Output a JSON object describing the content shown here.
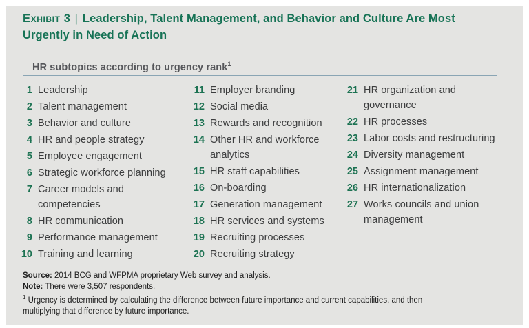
{
  "header": {
    "exhibit_label": "Exhibit 3",
    "separator": "|",
    "title_line1": "Leadership, Talent Management, and Behavior and Culture Are Most",
    "title_line2": "Urgently in Need of Action"
  },
  "subtitle": {
    "text": "HR subtopics according to urgency rank",
    "footnote_marker": "1"
  },
  "list": {
    "columns": [
      {
        "items": [
          {
            "rank": "1",
            "label": "Leadership"
          },
          {
            "rank": "2",
            "label": "Talent management"
          },
          {
            "rank": "3",
            "label": "Behavior and culture"
          },
          {
            "rank": "4",
            "label": "HR and people strategy"
          },
          {
            "rank": "5",
            "label": "Employee engagement"
          },
          {
            "rank": "6",
            "label": "Strategic workforce planning"
          },
          {
            "rank": "7",
            "label": "Career models and\ncompetencies"
          },
          {
            "rank": "8",
            "label": "HR communication"
          },
          {
            "rank": "9",
            "label": "Performance management"
          },
          {
            "rank": "10",
            "label": "Training and learning"
          }
        ]
      },
      {
        "items": [
          {
            "rank": "11",
            "label": "Employer branding"
          },
          {
            "rank": "12",
            "label": "Social media"
          },
          {
            "rank": "13",
            "label": "Rewards and recognition"
          },
          {
            "rank": "14",
            "label": "Other HR and workforce\nanalytics"
          },
          {
            "rank": "15",
            "label": "HR staff capabilities"
          },
          {
            "rank": "16",
            "label": "On-boarding"
          },
          {
            "rank": "17",
            "label": "Generation management"
          },
          {
            "rank": "18",
            "label": "HR services and systems"
          },
          {
            "rank": "19",
            "label": "Recruiting processes"
          },
          {
            "rank": "20",
            "label": "Recruiting strategy"
          }
        ]
      },
      {
        "items": [
          {
            "rank": "21",
            "label": "HR organization and\ngovernance"
          },
          {
            "rank": "22",
            "label": "HR processes"
          },
          {
            "rank": "23",
            "label": "Labor costs and restructuring"
          },
          {
            "rank": "24",
            "label": "Diversity management"
          },
          {
            "rank": "25",
            "label": "Assignment management"
          },
          {
            "rank": "26",
            "label": "HR internationalization"
          },
          {
            "rank": "27",
            "label": "Works councils and union\nmanagement"
          }
        ]
      }
    ]
  },
  "footer": {
    "source_label": "Source:",
    "source_text": "2014 BCG and WFPMA proprietary Web survey and analysis.",
    "note_label": "Note:",
    "note_text": "There were 3,507 respondents.",
    "footnote_marker": "1",
    "footnote_text": "Urgency is determined by calculating the difference between future importance and current capabilities, and then\nmultiplying that difference by future importance."
  },
  "colors": {
    "accent_green": "#177356",
    "panel_background": "#e4e4e2",
    "body_text": "#3c3d3e",
    "subtitle_text": "#55565a",
    "rule_blue": "#8aa5b4",
    "footer_text": "#212121"
  }
}
